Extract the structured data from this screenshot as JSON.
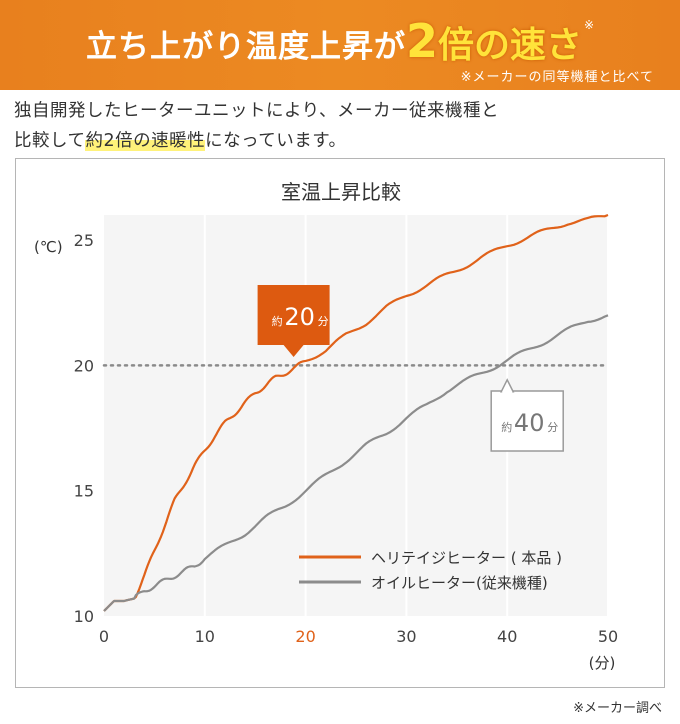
{
  "banner": {
    "title_main": "立ち上がり温度上昇が",
    "title_highlight": "2",
    "title_highlight2": "倍の速さ",
    "title_mark": "※",
    "note": "※メーカーの同等機種と比べて",
    "bg_color": "#e8801e",
    "highlight_color": "#ffe33a"
  },
  "description": {
    "line1": "独自開発したヒーターユニットにより、メーカー従来機種と",
    "line2_pre": "比較して",
    "line2_highlight": "約2倍の速暖性",
    "line2_post": "になっています。"
  },
  "footnote": "※メーカー調べ",
  "chart_data": {
    "type": "line",
    "title": "室温上昇比較",
    "xlabel": "(分)",
    "ylabel": "(℃)",
    "xlim": [
      0,
      50
    ],
    "ylim": [
      10,
      26
    ],
    "x_ticks": [
      "0",
      "10",
      "20",
      "30",
      "40",
      "50"
    ],
    "x_tick_highlight": "20",
    "y_ticks": [
      "10",
      "15",
      "20",
      "25"
    ],
    "reference_line_y": 20,
    "grid": "vertical",
    "legend_position": "bottom-right",
    "series": [
      {
        "name": "ヘリテイジヒーター ( 本品 )",
        "color": "#e0621a",
        "x": [
          0,
          1,
          2,
          3,
          4,
          5,
          6,
          7,
          8,
          9,
          10,
          11,
          12,
          13,
          14,
          15,
          16,
          17,
          18,
          19,
          20,
          22,
          24,
          26,
          28,
          30,
          32,
          34,
          36,
          38,
          40,
          42,
          44,
          46,
          48,
          50
        ],
        "y": [
          10.2,
          10.6,
          10.6,
          10.7,
          11.6,
          12.6,
          13.6,
          14.6,
          15.3,
          16.0,
          16.6,
          17.2,
          17.7,
          18.1,
          18.5,
          18.9,
          19.2,
          19.5,
          19.7,
          19.9,
          20.2,
          20.6,
          21.2,
          21.7,
          22.3,
          22.8,
          23.2,
          23.6,
          24.0,
          24.4,
          24.8,
          25.1,
          25.4,
          25.7,
          25.8,
          26.0
        ]
      },
      {
        "name": "オイルヒーター(従来機種)",
        "color": "#8c8c8c",
        "x": [
          0,
          1,
          2,
          3,
          4,
          5,
          6,
          7,
          8,
          9,
          10,
          12,
          14,
          16,
          18,
          20,
          22,
          24,
          26,
          28,
          30,
          32,
          34,
          36,
          38,
          40,
          42,
          44,
          46,
          48,
          50
        ],
        "y": [
          10.2,
          10.6,
          10.6,
          10.7,
          11.0,
          11.2,
          11.4,
          11.6,
          11.8,
          12.0,
          12.3,
          12.8,
          13.3,
          13.9,
          14.4,
          15.0,
          15.6,
          16.2,
          16.8,
          17.3,
          17.9,
          18.4,
          19.0,
          19.4,
          19.8,
          20.2,
          20.6,
          21.0,
          21.4,
          21.8,
          22.0
        ]
      }
    ],
    "callouts": [
      {
        "series": 0,
        "x": 20,
        "y": 20,
        "prefix": "約",
        "value": "20",
        "unit": "分"
      },
      {
        "series": 1,
        "x": 40,
        "y": 20,
        "prefix": "約",
        "value": "40",
        "unit": "分"
      }
    ]
  }
}
